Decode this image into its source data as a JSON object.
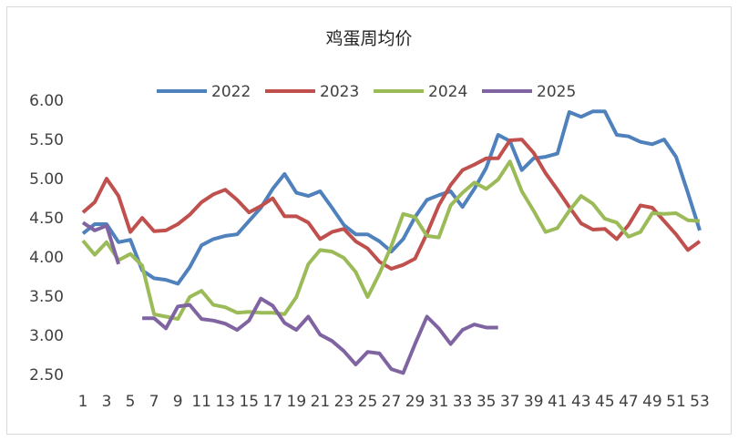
{
  "chart_data": {
    "type": "line",
    "title": "鸡蛋周均价",
    "categories": [
      "1",
      null,
      "3",
      null,
      "5",
      null,
      "7",
      null,
      "9",
      null,
      "11",
      null,
      "13",
      null,
      "15",
      null,
      "17",
      null,
      "19",
      null,
      "21",
      null,
      "23",
      null,
      "25",
      null,
      "27",
      null,
      "29",
      null,
      "31",
      null,
      "33",
      null,
      "35",
      null,
      "37",
      null,
      "39",
      null,
      "41",
      null,
      "43",
      null,
      "45",
      null,
      "47",
      null,
      "49",
      null,
      "51",
      null,
      "53"
    ],
    "series": [
      {
        "name": "2022",
        "color": "#4f81bd",
        "values": [
          4.31,
          4.43,
          4.43,
          4.2,
          4.23,
          3.84,
          3.74,
          3.72,
          3.67,
          3.88,
          4.16,
          4.24,
          4.28,
          4.3,
          4.47,
          4.64,
          4.88,
          5.07,
          4.83,
          4.79,
          4.85,
          4.64,
          4.42,
          4.3,
          4.3,
          4.21,
          4.08,
          4.24,
          4.52,
          4.74,
          4.8,
          4.85,
          4.65,
          4.88,
          5.15,
          5.57,
          5.49,
          5.12,
          5.27,
          5.29,
          5.33,
          5.86,
          5.8,
          5.87,
          5.87,
          5.57,
          5.55,
          5.48,
          5.45,
          5.51,
          5.29,
          4.83,
          4.35
        ]
      },
      {
        "name": "2023",
        "color": "#c0504d",
        "values": [
          4.58,
          4.71,
          5.01,
          4.79,
          4.33,
          4.51,
          4.34,
          4.35,
          4.43,
          4.55,
          4.71,
          4.81,
          4.87,
          4.74,
          4.58,
          4.66,
          4.76,
          4.53,
          4.53,
          4.45,
          4.24,
          4.33,
          4.37,
          4.21,
          4.12,
          3.95,
          3.86,
          3.91,
          3.99,
          4.31,
          4.67,
          4.93,
          5.12,
          5.19,
          5.27,
          5.27,
          5.5,
          5.51,
          5.34,
          5.08,
          4.87,
          4.65,
          4.44,
          4.36,
          4.37,
          4.24,
          4.42,
          4.67,
          4.64,
          4.47,
          4.3,
          4.1,
          4.21
        ]
      },
      {
        "name": "2024",
        "color": "#9bbb59",
        "values": [
          4.22,
          4.04,
          4.2,
          3.97,
          4.05,
          3.9,
          3.28,
          3.25,
          3.22,
          3.5,
          3.58,
          3.4,
          3.37,
          3.3,
          3.31,
          3.3,
          3.3,
          3.28,
          3.5,
          3.92,
          4.1,
          4.08,
          4.0,
          3.82,
          3.5,
          3.8,
          4.15,
          4.56,
          4.52,
          4.28,
          4.26,
          4.67,
          4.83,
          4.96,
          4.88,
          5.0,
          5.23,
          4.85,
          4.6,
          4.33,
          4.38,
          4.6,
          4.79,
          4.69,
          4.5,
          4.45,
          4.27,
          4.33,
          4.57,
          4.56,
          4.57,
          4.48,
          4.47
        ]
      },
      {
        "name": "2025",
        "color": "#8064a2",
        "values": [
          4.45,
          4.35,
          4.41,
          3.92,
          null,
          3.23,
          3.23,
          3.1,
          3.38,
          3.4,
          3.22,
          3.2,
          3.16,
          3.08,
          3.2,
          3.48,
          3.39,
          3.17,
          3.08,
          3.25,
          3.02,
          2.94,
          2.81,
          2.64,
          2.8,
          2.78,
          2.58,
          2.53,
          2.9,
          3.25,
          3.1,
          2.9,
          3.08,
          3.15,
          3.11,
          3.11,
          null,
          null,
          null,
          null,
          null,
          null,
          null,
          null,
          null,
          null,
          null,
          null,
          null,
          null,
          null,
          null,
          null
        ]
      }
    ],
    "ylim": [
      2.5,
      6.0
    ],
    "yticks": [
      {
        "value": 2.5,
        "label": "2.50"
      },
      {
        "value": 3,
        "label": "3.00"
      },
      {
        "value": 3.5,
        "label": "3.50"
      },
      {
        "value": 4,
        "label": "4.00"
      },
      {
        "value": 4.5,
        "label": "4.50"
      },
      {
        "value": 5,
        "label": "5.00"
      },
      {
        "value": 5.5,
        "label": "5.50"
      },
      {
        "value": 6,
        "label": "6.00"
      }
    ],
    "grid": false,
    "legend": "top"
  }
}
